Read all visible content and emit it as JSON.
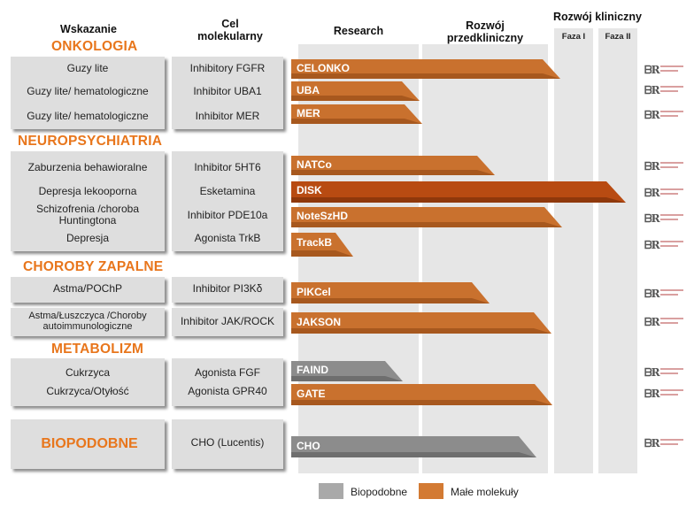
{
  "headers": {
    "indication": "Wskazanie",
    "target": "Cel molekularny",
    "research": "Research",
    "preclinical": "Rozwój przedkliniczny",
    "clinical": "Rozwój kliniczny",
    "phase1": "Faza I",
    "phase2": "Faza II"
  },
  "sections": {
    "oncology": "ONKOLOGIA",
    "neuro": "NEUROPSYCHIATRIA",
    "inflammatory": "CHOROBY ZAPALNE",
    "metabolism": "METABOLIZM",
    "biosimilars": "BIOPODOBNE"
  },
  "rows": [
    {
      "indication": "Guzy lite",
      "target": "Inhibitory FGFR",
      "project": "CELONKO",
      "color": "#c9712e"
    },
    {
      "indication": "Guzy lite/ hematologiczne",
      "target": "Inhibitor UBA1",
      "project": "UBA",
      "color": "#c9712e"
    },
    {
      "indication": "Guzy lite/ hematologiczne",
      "target": "Inhibitor MER",
      "project": "MER",
      "color": "#c9712e"
    },
    {
      "indication": "Zaburzenia behawioralne",
      "target": "Inhibitor 5HT6",
      "project": "NATCo",
      "color": "#c9712e"
    },
    {
      "indication": "Depresja lekooporna",
      "target": "Esketamina",
      "project": "DISK",
      "color": "#b84b12"
    },
    {
      "indication": "Schizofrenia /choroba Huntingtona",
      "target": "Inhibitor PDE10a",
      "project": "NoteSzHD",
      "color": "#c9712e"
    },
    {
      "indication": "Depresja",
      "target": "Agonista TrkB",
      "project": "TrackB",
      "color": "#c9712e"
    },
    {
      "indication": "Astma/POChP",
      "target": "Inhibitor PI3Kδ",
      "project": "PIKCel",
      "color": "#c9712e"
    },
    {
      "indication": "Astma/Łuszczyca /Choroby autoimmunologiczne",
      "target": "Inhibitor JAK/ROCK",
      "project": "JAKSON",
      "color": "#c9712e"
    },
    {
      "indication": "Cukrzyca",
      "target": "Agonista FGF",
      "project": "FAIND",
      "color": "#8c8c8c"
    },
    {
      "indication": "Cukrzyca/Otyłość",
      "target": "Agonista GPR40",
      "project": "GATE",
      "color": "#c9712e"
    },
    {
      "indication": "",
      "target": "CHO (Lucentis)",
      "project": "CHO",
      "color": "#8c8c8c"
    }
  ],
  "legend": {
    "biosimilar": "Biopodobne",
    "small_molecules": "Małe molekuły",
    "biosimilar_color": "#a9a9a9",
    "small_color": "#d37a33"
  },
  "logo_mark": "ᗷR"
}
